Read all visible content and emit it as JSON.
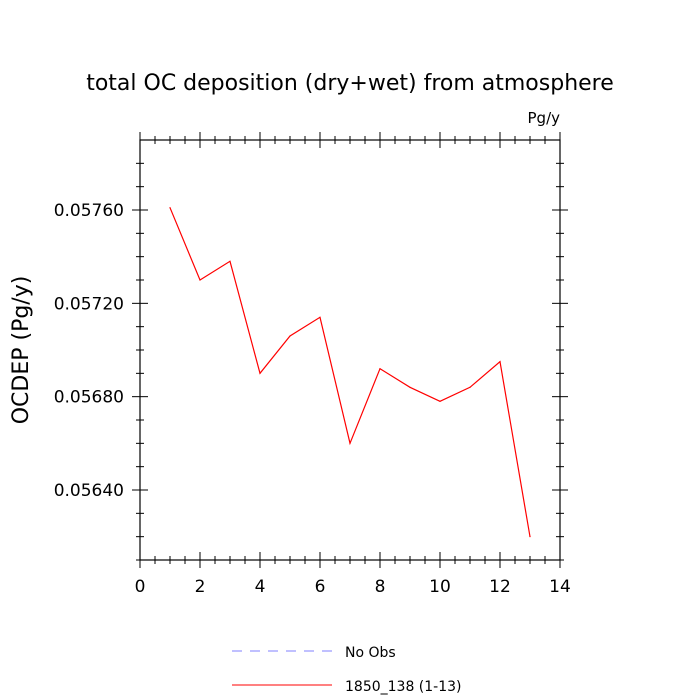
{
  "chart_data": {
    "type": "line",
    "title": "total OC deposition (dry+wet) from atmosphere",
    "units": "Pg/y",
    "xlabel": "",
    "ylabel": "OCDEP  (Pg/y)",
    "xlim": [
      0,
      14
    ],
    "ylim": [
      0.0561,
      0.0579
    ],
    "xticks": [
      0,
      2,
      4,
      6,
      8,
      10,
      12,
      14
    ],
    "yticks": [
      0.0564,
      0.0568,
      0.0572,
      0.0576
    ],
    "ytick_labels": [
      "0.05640",
      "0.05680",
      "0.05720",
      "0.05760"
    ],
    "grid": false,
    "series": [
      {
        "name": "1850_138 (1-13)",
        "color": "#ff0000",
        "x": [
          1,
          2,
          3,
          4,
          5,
          6,
          7,
          8,
          9,
          10,
          11,
          12,
          13
        ],
        "y": [
          0.05761,
          0.0573,
          0.05738,
          0.0569,
          0.05706,
          0.05714,
          0.0566,
          0.05692,
          0.05684,
          0.05678,
          0.05684,
          0.05695,
          0.0562
        ]
      }
    ],
    "legend": [
      {
        "label": "No Obs",
        "color": "#8080ff",
        "style": "dashed"
      },
      {
        "label": "1850_138 (1-13)",
        "color": "#ff0000",
        "style": "solid"
      }
    ],
    "legend_position": "bottom"
  }
}
